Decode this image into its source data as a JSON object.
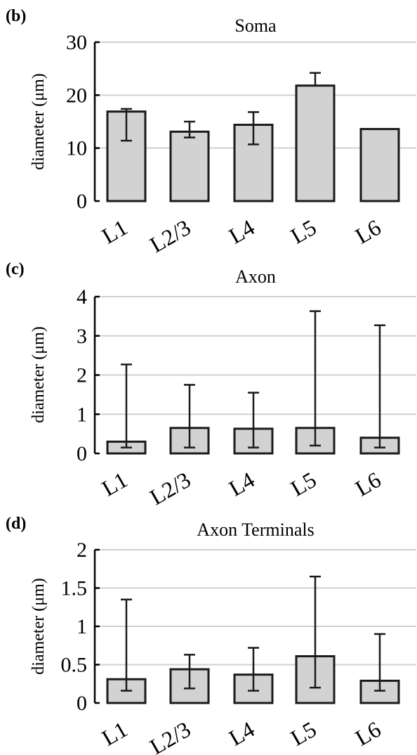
{
  "chart_data": [
    {
      "type": "bar",
      "panel_label": "(b)",
      "title": "Soma",
      "ylabel": "diameter (μm)",
      "categories": [
        "L1",
        "L2/3",
        "L4",
        "L5",
        "L6"
      ],
      "values": [
        16.9,
        13.1,
        14.4,
        21.8,
        13.6
      ],
      "error_low": [
        11.4,
        12.0,
        10.7,
        21.8,
        13.6
      ],
      "error_high": [
        17.4,
        15.0,
        16.8,
        24.2,
        13.6
      ],
      "ylim": [
        0,
        30
      ],
      "yticks": [
        0,
        10,
        20,
        30
      ],
      "ytick_labels": [
        "0",
        "10",
        "20",
        "30"
      ],
      "grid": true
    },
    {
      "type": "bar",
      "panel_label": "(c)",
      "title": "Axon",
      "ylabel": "diameter (μm)",
      "categories": [
        "L1",
        "L2/3",
        "L4",
        "L5",
        "L6"
      ],
      "values": [
        0.3,
        0.65,
        0.63,
        0.65,
        0.4
      ],
      "error_low": [
        0.15,
        0.15,
        0.15,
        0.2,
        0.15
      ],
      "error_high": [
        2.27,
        1.75,
        1.55,
        3.63,
        3.27
      ],
      "ylim": [
        0,
        4
      ],
      "yticks": [
        0,
        1,
        2,
        3,
        4
      ],
      "ytick_labels": [
        "0",
        "1",
        "2",
        "3",
        "4"
      ],
      "grid": true
    },
    {
      "type": "bar",
      "panel_label": "(d)",
      "title": "Axon Terminals",
      "ylabel": "diameter (μm)",
      "categories": [
        "L1",
        "L2/3",
        "L4",
        "L5",
        "L6"
      ],
      "values": [
        0.31,
        0.44,
        0.37,
        0.61,
        0.29
      ],
      "error_low": [
        0.16,
        0.19,
        0.16,
        0.2,
        0.16
      ],
      "error_high": [
        1.35,
        0.63,
        0.72,
        1.65,
        0.9
      ],
      "ylim": [
        0,
        2
      ],
      "yticks": [
        0,
        0.5,
        1,
        1.5,
        2
      ],
      "ytick_labels": [
        "0",
        "0.5",
        "1",
        "1.5",
        "2"
      ],
      "grid": true
    }
  ]
}
